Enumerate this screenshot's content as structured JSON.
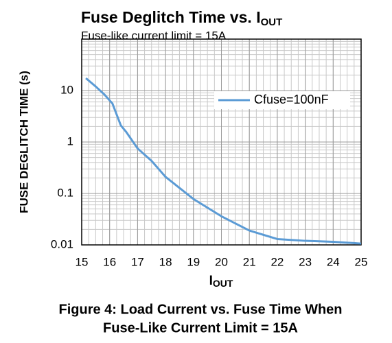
{
  "chart_data": {
    "type": "line",
    "title": {
      "text": "Fuse Deglitch Time vs. I",
      "subscript": "OUT"
    },
    "subtitle": "Fuse-like current limit = 15A",
    "xlabel": {
      "text": "I",
      "subscript": "OUT"
    },
    "ylabel": "FUSE DEGLITCH TIME (s)",
    "caption": [
      "Figure 4: Load Current vs. Fuse Time When",
      "Fuse-Like Current Limit = 15A"
    ],
    "x": [
      15.15,
      15.5,
      15.8,
      16.1,
      16.4,
      16.6,
      17,
      17.5,
      18,
      19,
      20,
      21,
      22,
      23,
      24,
      25
    ],
    "series": [
      {
        "name": "Cfuse=100nF",
        "color": "#5b9bd5",
        "values": [
          17.4,
          12,
          8.5,
          5.6,
          2.1,
          1.55,
          0.75,
          0.43,
          0.21,
          0.078,
          0.036,
          0.019,
          0.013,
          0.012,
          0.0115,
          0.0106
        ]
      }
    ],
    "xlim": [
      15,
      25
    ],
    "xticks": [
      15,
      16,
      17,
      18,
      19,
      20,
      21,
      22,
      23,
      24,
      25
    ],
    "ylim": [
      0.01,
      100
    ],
    "yticks": [
      0.01,
      0.1,
      1,
      10
    ],
    "ylog": true,
    "grid": true
  }
}
